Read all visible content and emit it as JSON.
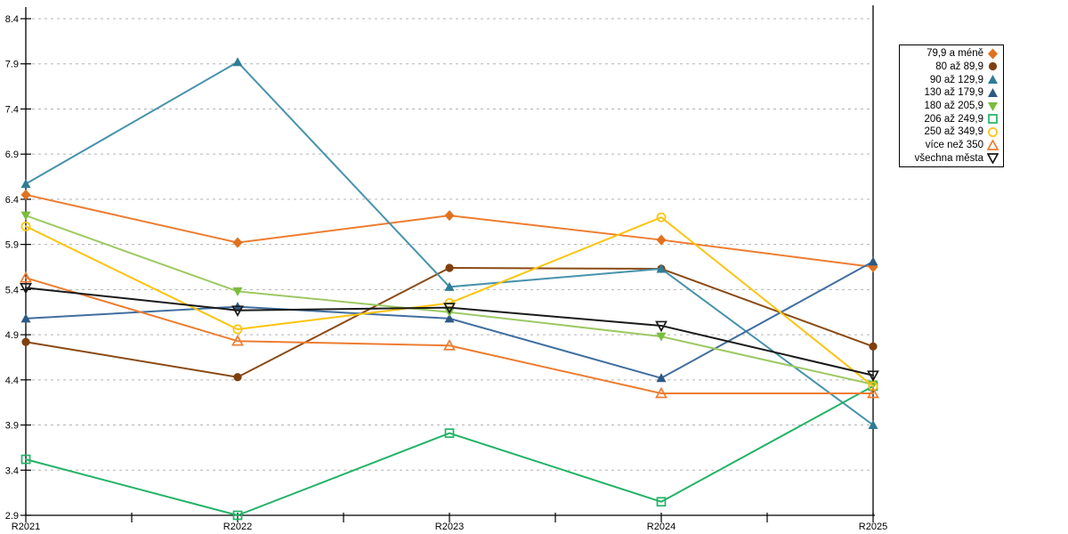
{
  "chart_data": {
    "type": "line",
    "title": "",
    "xlabel": "",
    "ylabel": "",
    "categories": [
      "R2021",
      "R2022",
      "R2023",
      "R2024",
      "R2025"
    ],
    "y_ticks": [
      8.4,
      7.9,
      7.4,
      6.9,
      6.4,
      5.9,
      5.4,
      4.9,
      4.4,
      3.9,
      3.4,
      2.9
    ],
    "ylim": [
      2.9,
      8.4
    ],
    "grid": "horizontal-dashed",
    "legend_position": "right",
    "axis_color": "#000000",
    "gridline_color": "#b3b3b3",
    "series": [
      {
        "name": "79,9 a méně",
        "color": "#ED7D31",
        "marker_color": "#E2711E",
        "marker": "diamond",
        "filled": true,
        "values": [
          6.45,
          5.92,
          6.22,
          5.95,
          5.65
        ]
      },
      {
        "name": "80 až 89,9",
        "color": "#8B4A15",
        "marker_color": "#7F3F0D",
        "marker": "circle",
        "filled": true,
        "values": [
          4.82,
          4.43,
          5.64,
          5.63,
          4.77
        ]
      },
      {
        "name": "90 až 129,9",
        "color": "#4793AB",
        "marker_color": "#2F7D95",
        "marker": "triangle-up",
        "filled": true,
        "values": [
          6.57,
          7.92,
          5.43,
          5.63,
          3.9
        ]
      },
      {
        "name": "130 až 179,9",
        "color": "#406E9F",
        "marker_color": "#2E5984",
        "marker": "triangle-up",
        "filled": true,
        "values": [
          5.08,
          5.21,
          5.08,
          4.42,
          5.71
        ]
      },
      {
        "name": "180 až 205,9",
        "color": "#9CC963",
        "marker_color": "#7ABD3C",
        "marker": "triangle-down",
        "filled": true,
        "values": [
          6.22,
          5.38,
          5.15,
          4.88,
          4.35
        ]
      },
      {
        "name": "206 až 249,9",
        "color": "#22B366",
        "marker_color": "#22B366",
        "marker": "square",
        "filled": false,
        "values": [
          3.52,
          2.9,
          3.81,
          3.05,
          4.33
        ]
      },
      {
        "name": "250 až 349,9",
        "color": "#FCC40E",
        "marker_color": "#FCC40E",
        "marker": "circle",
        "filled": false,
        "values": [
          6.1,
          4.96,
          5.25,
          6.2,
          4.33
        ]
      },
      {
        "name": "více než 350",
        "color": "#ED7D31",
        "marker_color": "#ED7D31",
        "marker": "triangle-up",
        "filled": false,
        "values": [
          5.53,
          4.83,
          4.78,
          4.25,
          4.25
        ]
      },
      {
        "name": "všechna města",
        "color": "#1A1A1A",
        "marker_color": "#1A1A1A",
        "marker": "triangle-down",
        "filled": false,
        "values": [
          5.42,
          5.17,
          5.2,
          5.0,
          4.45
        ]
      }
    ]
  }
}
